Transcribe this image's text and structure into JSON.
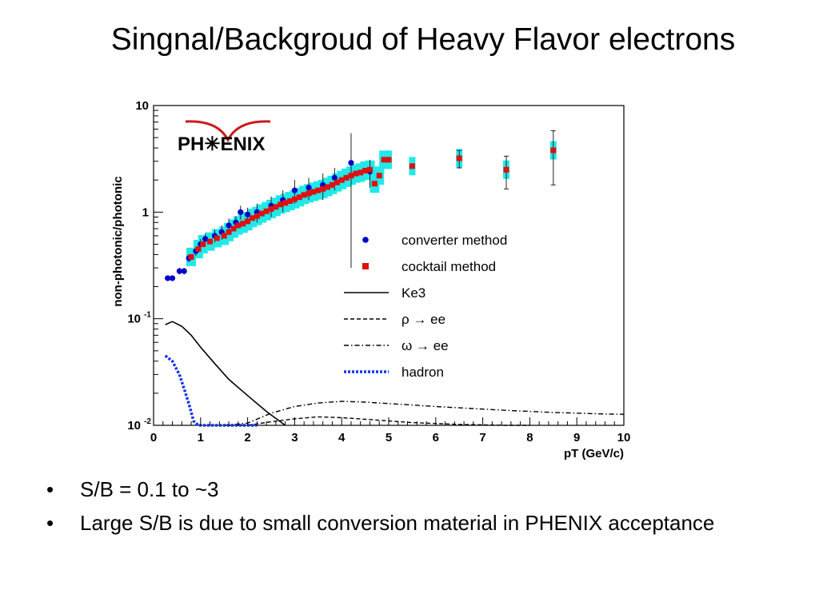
{
  "slide": {
    "title": "Singnal/Backgroud of Heavy Flavor electrons",
    "bullets": [
      {
        "symbol": "•",
        "text": "S/B = 0.1 to ~3"
      },
      {
        "symbol": "•",
        "text": "Large S/B is due to small conversion material in PHENIX acceptance"
      }
    ]
  },
  "chart_data": {
    "type": "scatter",
    "logo": "PH✳ENIX",
    "xlabel": "pT (GeV/c)",
    "ylabel": "non-photonic/photonic",
    "xlim": [
      0,
      10
    ],
    "ylim": [
      0.01,
      10
    ],
    "yscale": "log",
    "x_ticks": [
      "0",
      "1",
      "2",
      "3",
      "4",
      "5",
      "6",
      "7",
      "8",
      "9",
      "10"
    ],
    "y_ticks": [
      {
        "value": 10,
        "label": "10"
      },
      {
        "value": 1,
        "label": "1"
      },
      {
        "value": 0.1,
        "label": "10",
        "sup": "-1"
      },
      {
        "value": 0.01,
        "label": "10",
        "sup": "-2"
      }
    ],
    "legend_position": "right-center",
    "series": [
      {
        "name": "converter method",
        "style": "circle",
        "color": "#0000cc",
        "points": [
          {
            "x": 0.3,
            "y": 0.24,
            "e": 0.01
          },
          {
            "x": 0.4,
            "y": 0.24,
            "e": 0.01
          },
          {
            "x": 0.55,
            "y": 0.28,
            "e": 0.02
          },
          {
            "x": 0.65,
            "y": 0.28,
            "e": 0.02
          },
          {
            "x": 0.75,
            "y": 0.37,
            "e": 0.03
          },
          {
            "x": 0.9,
            "y": 0.43,
            "e": 0.04
          },
          {
            "x": 1.0,
            "y": 0.5,
            "e": 0.06
          },
          {
            "x": 1.1,
            "y": 0.56,
            "e": 0.07
          },
          {
            "x": 1.3,
            "y": 0.6,
            "e": 0.08
          },
          {
            "x": 1.45,
            "y": 0.65,
            "e": 0.1
          },
          {
            "x": 1.6,
            "y": 0.75,
            "e": 0.12
          },
          {
            "x": 1.75,
            "y": 0.8,
            "e": 0.12
          },
          {
            "x": 1.85,
            "y": 1.0,
            "e": 0.15
          },
          {
            "x": 2.0,
            "y": 0.95,
            "e": 0.15
          },
          {
            "x": 2.2,
            "y": 1.0,
            "e": 0.2
          },
          {
            "x": 2.5,
            "y": 1.15,
            "e": 0.25
          },
          {
            "x": 2.75,
            "y": 1.3,
            "e": 0.3
          },
          {
            "x": 3.0,
            "y": 1.6,
            "e": 0.4
          },
          {
            "x": 3.3,
            "y": 1.7,
            "e": 0.4
          },
          {
            "x": 3.6,
            "y": 1.8,
            "e": 0.5
          },
          {
            "x": 3.85,
            "y": 2.1,
            "e": 0.5
          },
          {
            "x": 4.2,
            "y": 2.9,
            "e": 2.6
          },
          {
            "x": 4.6,
            "y": 2.4,
            "e": 0.7
          }
        ]
      },
      {
        "name": "cocktail method",
        "style": "square",
        "color": "#dd1111",
        "points": [
          {
            "x": 0.8,
            "y": 0.38
          },
          {
            "x": 0.95,
            "y": 0.45
          },
          {
            "x": 1.05,
            "y": 0.5
          },
          {
            "x": 1.2,
            "y": 0.53
          },
          {
            "x": 1.35,
            "y": 0.57
          },
          {
            "x": 1.5,
            "y": 0.6
          },
          {
            "x": 1.6,
            "y": 0.65
          },
          {
            "x": 1.7,
            "y": 0.7
          },
          {
            "x": 1.8,
            "y": 0.75
          },
          {
            "x": 1.9,
            "y": 0.78
          },
          {
            "x": 2.0,
            "y": 0.82
          },
          {
            "x": 2.1,
            "y": 0.88
          },
          {
            "x": 2.2,
            "y": 0.92
          },
          {
            "x": 2.3,
            "y": 0.97
          },
          {
            "x": 2.4,
            "y": 1.02
          },
          {
            "x": 2.5,
            "y": 1.07
          },
          {
            "x": 2.6,
            "y": 1.12
          },
          {
            "x": 2.7,
            "y": 1.18
          },
          {
            "x": 2.8,
            "y": 1.22
          },
          {
            "x": 2.9,
            "y": 1.27
          },
          {
            "x": 3.0,
            "y": 1.32
          },
          {
            "x": 3.1,
            "y": 1.38
          },
          {
            "x": 3.2,
            "y": 1.45
          },
          {
            "x": 3.3,
            "y": 1.5
          },
          {
            "x": 3.4,
            "y": 1.55
          },
          {
            "x": 3.5,
            "y": 1.6
          },
          {
            "x": 3.6,
            "y": 1.65
          },
          {
            "x": 3.7,
            "y": 1.72
          },
          {
            "x": 3.8,
            "y": 1.8
          },
          {
            "x": 3.9,
            "y": 1.9
          },
          {
            "x": 4.0,
            "y": 2.0
          },
          {
            "x": 4.1,
            "y": 2.1
          },
          {
            "x": 4.2,
            "y": 2.2
          },
          {
            "x": 4.3,
            "y": 2.3
          },
          {
            "x": 4.4,
            "y": 2.35
          },
          {
            "x": 4.5,
            "y": 2.45
          },
          {
            "x": 4.6,
            "y": 2.5
          },
          {
            "x": 4.7,
            "y": 1.85
          },
          {
            "x": 4.8,
            "y": 2.2
          },
          {
            "x": 4.9,
            "y": 3.1
          },
          {
            "x": 5.0,
            "y": 3.1
          },
          {
            "x": 5.5,
            "y": 2.7
          },
          {
            "x": 6.5,
            "y": 3.2
          },
          {
            "x": 7.5,
            "y": 2.5
          },
          {
            "x": 8.5,
            "y": 3.8
          }
        ]
      }
    ],
    "curves": [
      {
        "name": "Ke3",
        "style": "solid",
        "color": "#000000",
        "points": [
          [
            0.25,
            0.088
          ],
          [
            0.4,
            0.094
          ],
          [
            0.6,
            0.085
          ],
          [
            0.8,
            0.07
          ],
          [
            1.0,
            0.054
          ],
          [
            1.3,
            0.038
          ],
          [
            1.6,
            0.027
          ],
          [
            2.0,
            0.019
          ],
          [
            2.4,
            0.0135
          ],
          [
            2.8,
            0.0098
          ]
        ]
      },
      {
        "name": "ρ → ee",
        "style": "dashed",
        "color": "#000000",
        "points": [
          [
            1.6,
            0.0085
          ],
          [
            2.0,
            0.0098
          ],
          [
            2.5,
            0.0108
          ],
          [
            3.0,
            0.0115
          ],
          [
            3.5,
            0.012
          ],
          [
            4.0,
            0.0118
          ],
          [
            4.5,
            0.0114
          ],
          [
            5.0,
            0.011
          ],
          [
            5.5,
            0.0106
          ],
          [
            6.0,
            0.0104
          ],
          [
            6.5,
            0.0102
          ],
          [
            7.0,
            0.0101
          ],
          [
            7.5,
            0.01
          ],
          [
            8.0,
            0.0099
          ]
        ]
      },
      {
        "name": "ω → ee",
        "style": "dashdot",
        "color": "#000000",
        "points": [
          [
            1.5,
            0.0085
          ],
          [
            2.0,
            0.0105
          ],
          [
            2.5,
            0.013
          ],
          [
            3.0,
            0.015
          ],
          [
            3.5,
            0.0162
          ],
          [
            4.0,
            0.0168
          ],
          [
            4.5,
            0.0165
          ],
          [
            5.0,
            0.016
          ],
          [
            5.5,
            0.0155
          ],
          [
            6.0,
            0.015
          ],
          [
            6.5,
            0.0146
          ],
          [
            7.0,
            0.0142
          ],
          [
            7.5,
            0.0138
          ],
          [
            8.0,
            0.0135
          ],
          [
            8.5,
            0.0132
          ],
          [
            9.0,
            0.013
          ],
          [
            9.5,
            0.0128
          ],
          [
            10.0,
            0.0127
          ]
        ]
      },
      {
        "name": "hadron",
        "style": "dotted",
        "color": "#1133ee",
        "points": [
          [
            0.25,
            0.045
          ],
          [
            0.4,
            0.04
          ],
          [
            0.55,
            0.03
          ],
          [
            0.65,
            0.022
          ],
          [
            0.75,
            0.016
          ],
          [
            0.85,
            0.011
          ],
          [
            0.95,
            0.0085
          ],
          [
            1.2,
            0.0085
          ],
          [
            1.6,
            0.0085
          ],
          [
            2.0,
            0.0085
          ],
          [
            2.2,
            0.0085
          ]
        ]
      }
    ]
  }
}
